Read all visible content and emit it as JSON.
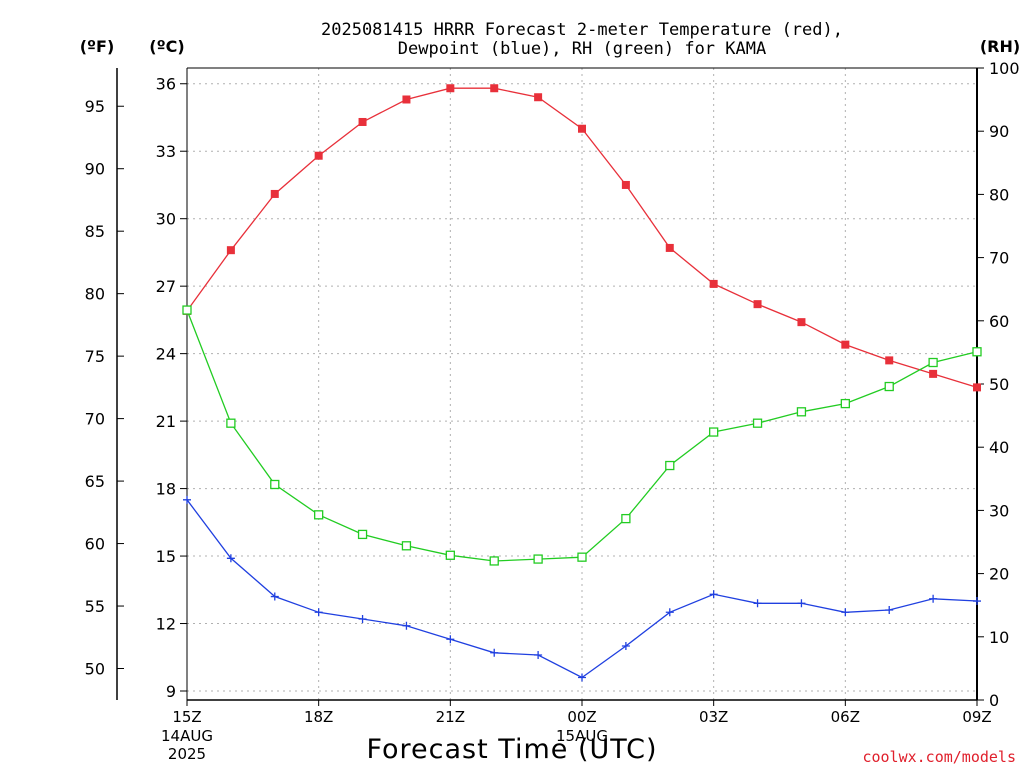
{
  "chart_data": {
    "type": "line",
    "title_line1": "2025081415 HRRR Forecast 2-meter Temperature (red),",
    "title_line2": "Dewpoint (blue), RH (green) for KAMA",
    "xlabel": "Forecast Time (UTC)",
    "credit": "coolwx.com/models",
    "units": {
      "fahrenheit": "(ºF)",
      "celsius": "(ºC)",
      "rh": "(RH)"
    },
    "celsius_axis": {
      "min": 8.6,
      "max": 36.7,
      "ticks": [
        "9",
        "12",
        "15",
        "18",
        "21",
        "24",
        "27",
        "30",
        "33",
        "36"
      ]
    },
    "fahrenheit_axis": {
      "ticks": [
        "50",
        "55",
        "60",
        "65",
        "70",
        "75",
        "80",
        "85",
        "90",
        "95"
      ]
    },
    "rh_axis": {
      "min": 0,
      "max": 100,
      "ticks": [
        "0",
        "10",
        "20",
        "30",
        "40",
        "50",
        "60",
        "70",
        "80",
        "90",
        "100"
      ]
    },
    "x_hours": [
      0,
      1,
      2,
      3,
      4,
      5,
      6,
      7,
      8,
      9,
      10,
      11,
      12,
      13,
      14,
      15,
      16,
      17,
      18
    ],
    "x_ticks": [
      {
        "hour": 0,
        "label": "15Z",
        "sub1": "14AUG",
        "sub2": "2025"
      },
      {
        "hour": 3,
        "label": "18Z",
        "sub1": "",
        "sub2": ""
      },
      {
        "hour": 6,
        "label": "21Z",
        "sub1": "",
        "sub2": ""
      },
      {
        "hour": 9,
        "label": "00Z",
        "sub1": "15AUG",
        "sub2": ""
      },
      {
        "hour": 12,
        "label": "03Z",
        "sub1": "",
        "sub2": ""
      },
      {
        "hour": 15,
        "label": "06Z",
        "sub1": "",
        "sub2": ""
      },
      {
        "hour": 18,
        "label": "09Z",
        "sub1": "",
        "sub2": ""
      }
    ],
    "grid": true,
    "series": [
      {
        "name": "Temperature",
        "axis": "celsius",
        "color": "#e8303a",
        "marker": "filled-square",
        "values": [
          25.9,
          28.6,
          31.1,
          32.8,
          34.3,
          35.3,
          35.8,
          35.8,
          35.4,
          34.0,
          31.5,
          28.7,
          27.1,
          26.2,
          25.4,
          24.4,
          23.7,
          23.1,
          22.5
        ]
      },
      {
        "name": "Dewpoint",
        "axis": "celsius",
        "color": "#2040e0",
        "marker": "plus",
        "values": [
          17.5,
          14.9,
          13.2,
          12.5,
          12.2,
          11.9,
          11.3,
          10.7,
          10.6,
          9.6,
          11.0,
          12.5,
          13.3,
          12.9,
          12.9,
          12.5,
          12.6,
          13.1,
          13.0
        ]
      },
      {
        "name": "RH",
        "axis": "rh",
        "color": "#22cc22",
        "marker": "open-square",
        "values": [
          61.7,
          43.8,
          34.1,
          29.3,
          26.2,
          24.4,
          22.9,
          22.0,
          22.3,
          22.6,
          28.7,
          37.1,
          42.4,
          43.8,
          45.6,
          46.9,
          49.6,
          53.4,
          55.1
        ]
      }
    ]
  }
}
